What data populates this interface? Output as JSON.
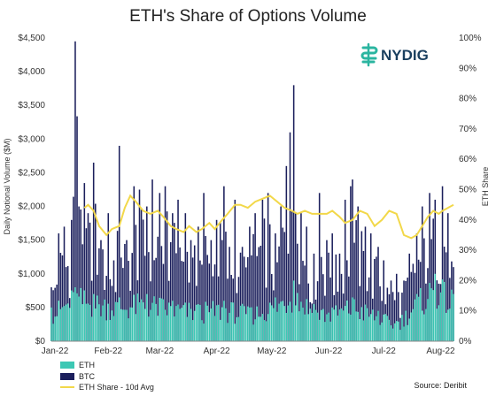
{
  "chart_data": {
    "type": "bar",
    "title": "ETH's Share of Options Volume",
    "ylabel": "Daily Notional Volume ($M)",
    "y2label": "ETH Share",
    "ylim": [
      0,
      4500
    ],
    "y2lim": [
      0,
      100
    ],
    "y_ticks": [
      "$0",
      "$500",
      "$1,000",
      "$1,500",
      "$2,000",
      "$2,500",
      "$3,000",
      "$3,500",
      "$4,000",
      "$4,500"
    ],
    "y2_ticks": [
      "0%",
      "10%",
      "20%",
      "30%",
      "40%",
      "50%",
      "60%",
      "70%",
      "80%",
      "90%",
      "100%"
    ],
    "x_ticks": [
      "Jan-22",
      "Feb-22",
      "Mar-22",
      "Apr-22",
      "May-22",
      "Jun-22",
      "Jul-22",
      "Aug-22"
    ],
    "date_start": "2022-01-01",
    "date_end": "2022-08-08",
    "legend_placement": "bottom-left",
    "source": "Source: Deribit",
    "logo": "NYDIG",
    "colors": {
      "eth": "#3cc8b4",
      "btc": "#1b1f5c",
      "share": "#f2d84a",
      "logo": "#2bb5a0"
    },
    "series": [
      {
        "name": "BTC",
        "kind": "bar",
        "sample_dates": [
          "2022-01-01",
          "2022-01-05",
          "2022-01-08",
          "2022-01-12",
          "2022-01-14",
          "2022-01-21",
          "2022-01-24",
          "2022-01-28",
          "2022-02-01",
          "2022-02-04",
          "2022-02-07",
          "2022-02-11",
          "2022-02-15",
          "2022-02-18",
          "2022-02-22",
          "2022-02-25",
          "2022-03-01",
          "2022-03-04",
          "2022-03-08",
          "2022-03-11",
          "2022-03-15",
          "2022-03-18",
          "2022-03-22",
          "2022-03-25",
          "2022-03-29",
          "2022-04-01",
          "2022-04-05",
          "2022-04-08",
          "2022-04-11",
          "2022-04-15",
          "2022-04-19",
          "2022-04-22",
          "2022-04-26",
          "2022-04-29",
          "2022-05-03",
          "2022-05-06",
          "2022-05-09",
          "2022-05-11",
          "2022-05-13",
          "2022-05-17",
          "2022-05-20",
          "2022-05-24",
          "2022-05-27",
          "2022-05-31",
          "2022-06-03",
          "2022-06-07",
          "2022-06-10",
          "2022-06-13",
          "2022-06-14",
          "2022-06-17",
          "2022-06-21",
          "2022-06-24",
          "2022-06-28",
          "2022-07-01",
          "2022-07-05",
          "2022-07-08",
          "2022-07-12",
          "2022-07-15",
          "2022-07-19",
          "2022-07-22",
          "2022-07-26",
          "2022-07-29",
          "2022-08-02",
          "2022-08-05",
          "2022-08-08"
        ],
        "sample_values": [
          800,
          1600,
          1700,
          1800,
          4450,
          1900,
          2650,
          1500,
          1900,
          1200,
          2900,
          1500,
          2300,
          2250,
          2000,
          2400,
          2200,
          2300,
          1900,
          2100,
          1900,
          1500,
          1700,
          2200,
          1500,
          1800,
          2300,
          1400,
          2100,
          1400,
          1700,
          1900,
          2100,
          2200,
          1600,
          2000,
          2600,
          3100,
          3800,
          1900,
          1700,
          1300,
          2200,
          1500,
          1600,
          1300,
          2100,
          2300,
          2400,
          2000,
          1700,
          1600,
          1400,
          1200,
          900,
          1000,
          900,
          1300,
          1600,
          2000,
          2200,
          2100,
          2300,
          1900,
          1100
        ]
      },
      {
        "name": "ETH",
        "kind": "bar",
        "sample_dates": [
          "2022-01-01",
          "2022-01-14",
          "2022-01-24",
          "2022-02-07",
          "2022-02-22",
          "2022-03-08",
          "2022-03-22",
          "2022-04-05",
          "2022-04-19",
          "2022-05-03",
          "2022-05-13",
          "2022-05-24",
          "2022-06-03",
          "2022-06-14",
          "2022-06-28",
          "2022-07-08",
          "2022-07-19",
          "2022-07-29",
          "2022-08-08"
        ],
        "sample_values": [
          500,
          800,
          700,
          650,
          700,
          600,
          550,
          600,
          500,
          650,
          900,
          550,
          500,
          650,
          450,
          300,
          700,
          1000,
          700
        ]
      },
      {
        "name": "ETH Share - 10d Avg",
        "kind": "line",
        "axis": "y2",
        "dates": [
          "2022-01-19",
          "2022-01-21",
          "2022-01-24",
          "2022-01-27",
          "2022-01-31",
          "2022-02-03",
          "2022-02-07",
          "2022-02-10",
          "2022-02-13",
          "2022-02-16",
          "2022-02-20",
          "2022-02-24",
          "2022-02-28",
          "2022-03-03",
          "2022-03-07",
          "2022-03-10",
          "2022-03-14",
          "2022-03-17",
          "2022-03-21",
          "2022-03-24",
          "2022-03-28",
          "2022-03-31",
          "2022-04-04",
          "2022-04-07",
          "2022-04-11",
          "2022-04-14",
          "2022-04-18",
          "2022-04-22",
          "2022-04-26",
          "2022-04-30",
          "2022-05-04",
          "2022-05-08",
          "2022-05-12",
          "2022-05-15",
          "2022-05-19",
          "2022-05-23",
          "2022-05-27",
          "2022-05-31",
          "2022-06-03",
          "2022-06-07",
          "2022-06-10",
          "2022-06-14",
          "2022-06-18",
          "2022-06-22",
          "2022-06-26",
          "2022-06-30",
          "2022-07-04",
          "2022-07-08",
          "2022-07-12",
          "2022-07-16",
          "2022-07-19",
          "2022-07-22",
          "2022-07-25",
          "2022-07-28",
          "2022-07-31",
          "2022-08-02",
          "2022-08-05",
          "2022-08-08"
        ],
        "values": [
          44,
          45,
          43,
          38,
          35,
          37,
          38,
          44,
          48,
          46,
          43,
          42,
          43,
          41,
          38,
          37,
          36,
          38,
          36,
          37,
          39,
          37,
          40,
          42,
          45,
          45,
          44,
          46,
          47,
          48,
          46,
          44,
          43,
          42,
          43,
          42,
          42,
          42,
          43,
          41,
          39,
          40,
          43,
          42,
          38,
          40,
          43,
          42,
          35,
          34,
          35,
          38,
          41,
          43,
          42,
          43,
          44,
          45
        ]
      }
    ]
  }
}
